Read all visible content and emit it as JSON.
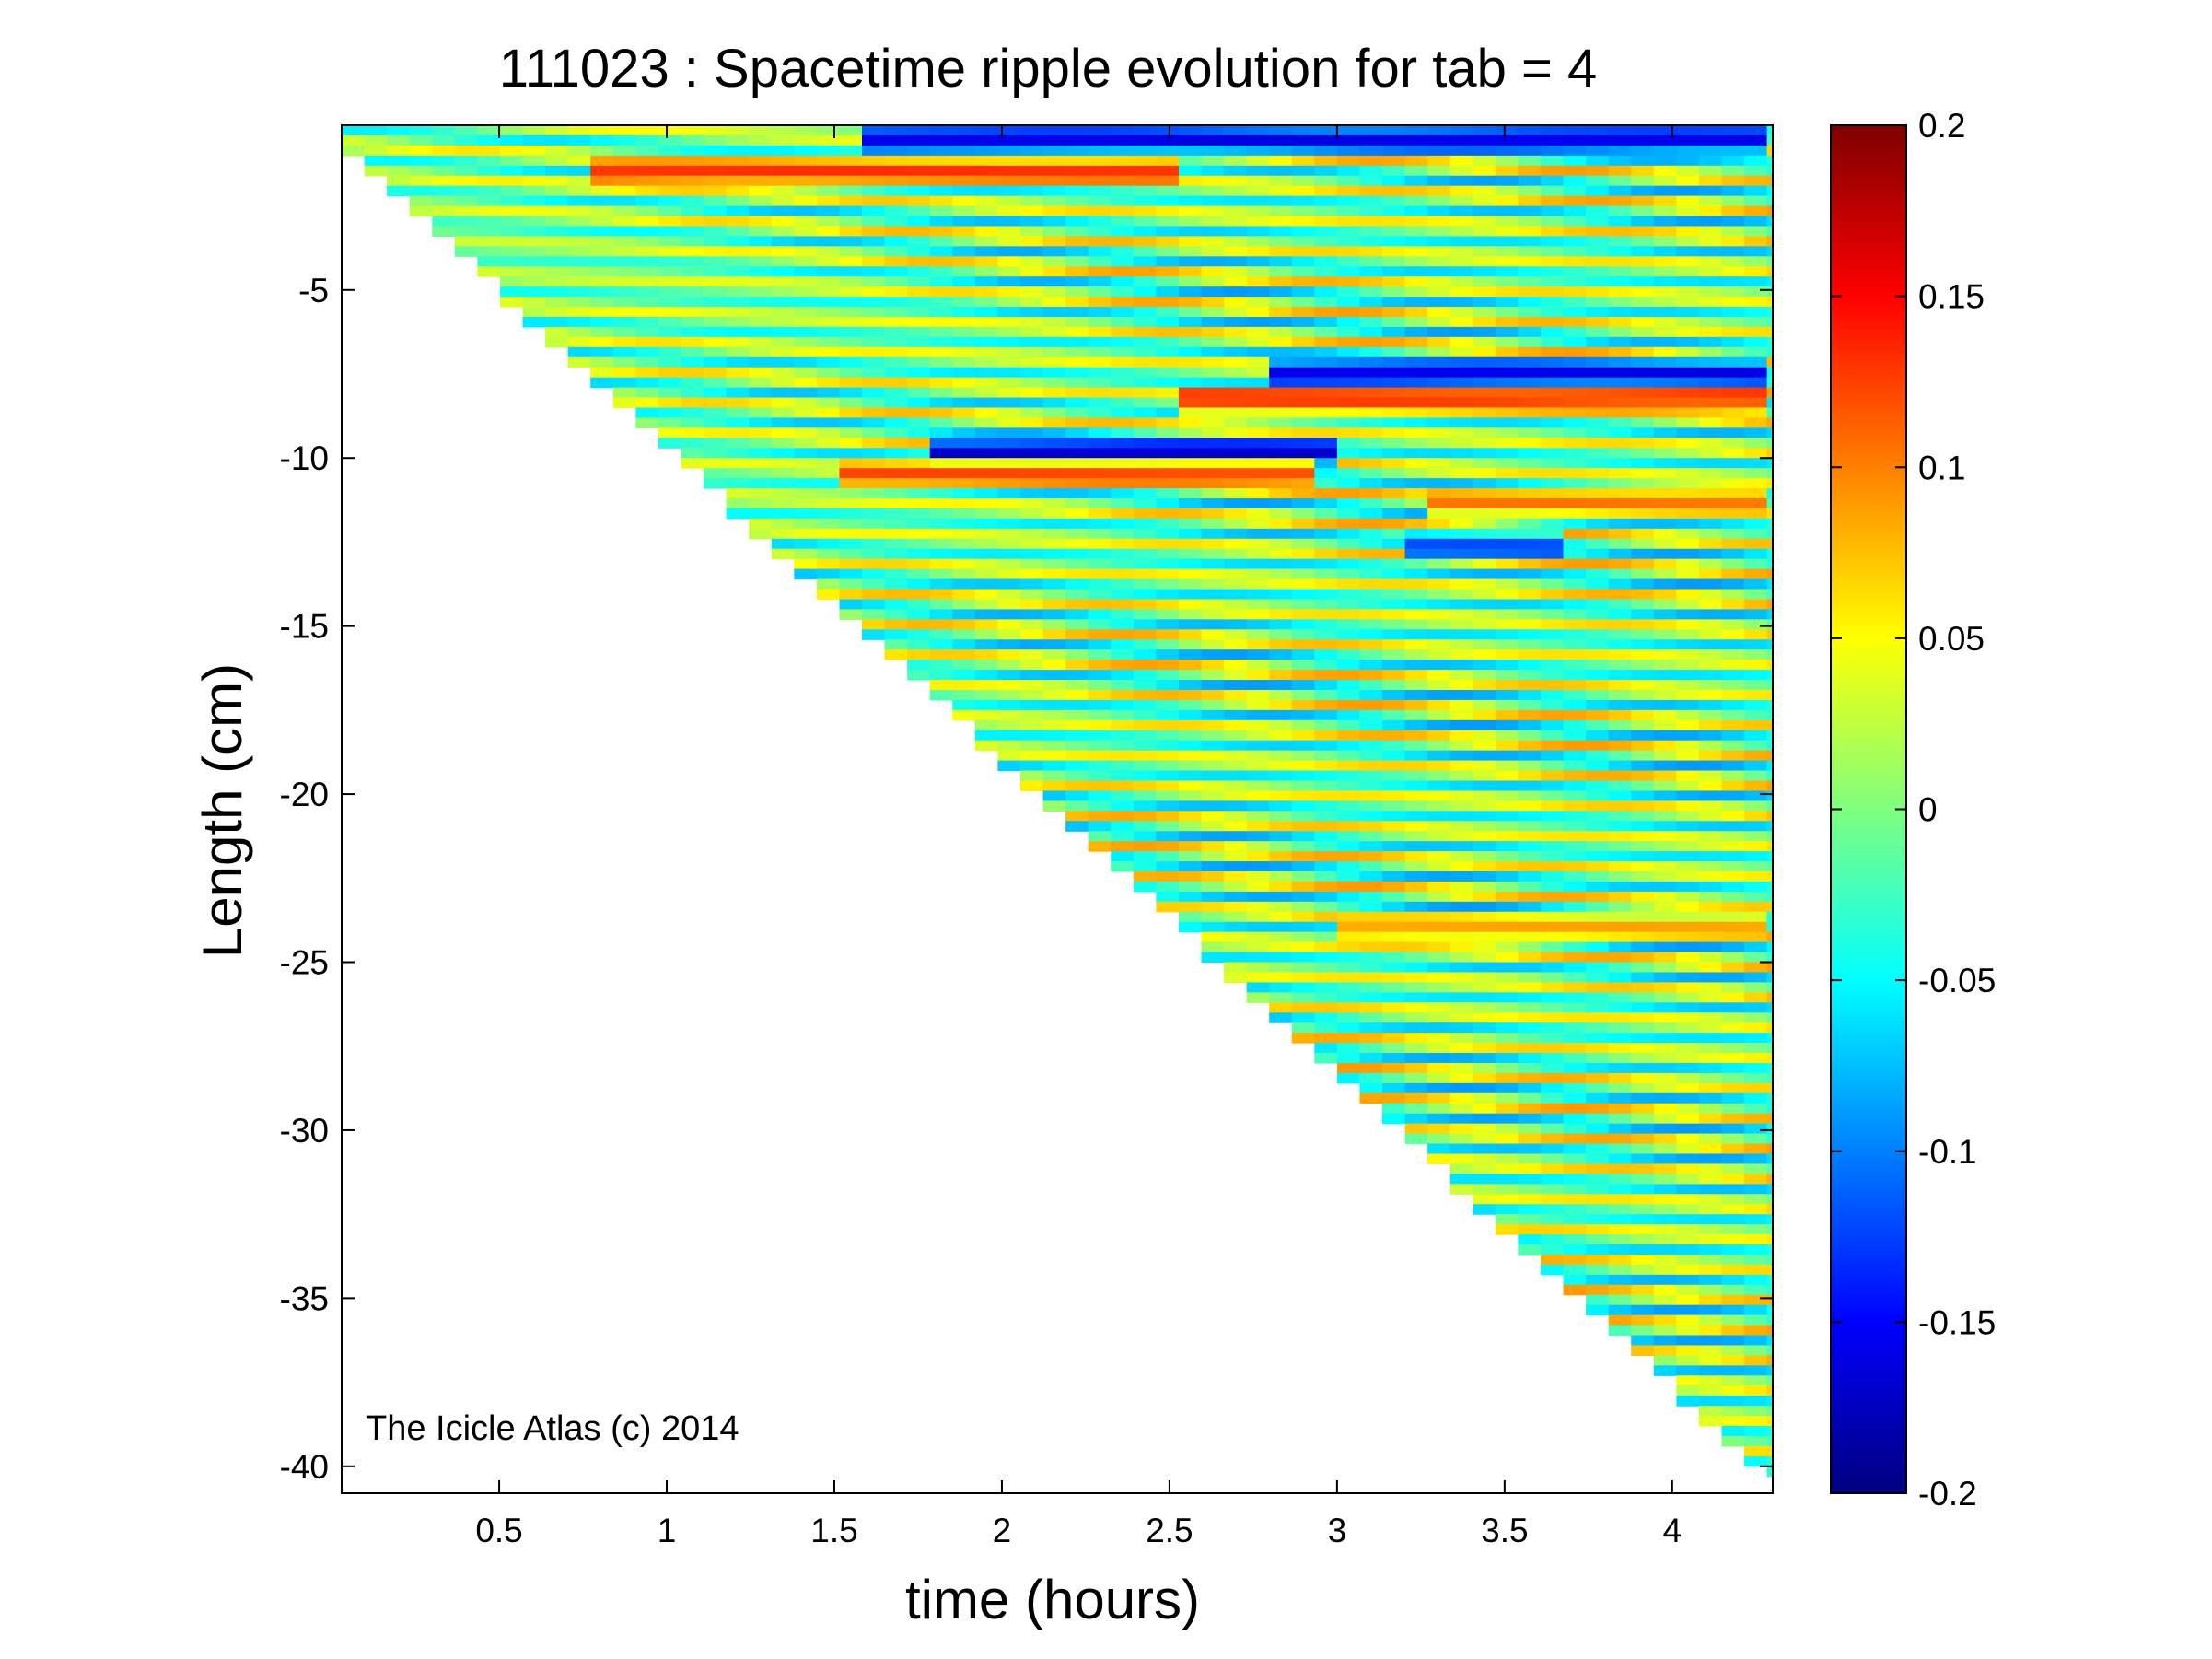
{
  "chart_data": {
    "type": "heatmap",
    "title": "111023 : Spacetime ripple evolution for tab = 4",
    "xlabel": "time (hours)",
    "ylabel": "Length (cm)",
    "xlim": [
      0.03,
      4.3
    ],
    "ylim": [
      -40.8,
      -0.1
    ],
    "x_ticks": [
      0.5,
      1,
      1.5,
      2,
      2.5,
      3,
      3.5,
      4
    ],
    "x_tick_labels": [
      "0.5",
      "1",
      "1.5",
      "2",
      "2.5",
      "3",
      "3.5",
      "4"
    ],
    "y_ticks": [
      -5,
      -10,
      -15,
      -20,
      -25,
      -30,
      -35,
      -40
    ],
    "y_tick_labels": [
      "-5",
      "-10",
      "-15",
      "-20",
      "-25",
      "-30",
      "-35",
      "-40"
    ],
    "colorbar": {
      "colormap": "jet",
      "range": [
        -0.2,
        0.2
      ],
      "ticks": [
        0.2,
        0.15,
        0.1,
        0.05,
        0,
        -0.05,
        -0.1,
        -0.15,
        -0.2
      ],
      "tick_labels": [
        "0.2",
        "0.15",
        "0.1",
        "0.05",
        "0",
        "-0.05",
        "-0.1",
        "-0.15",
        "-0.2"
      ]
    },
    "data_boundary": {
      "description_points_t_h": [
        0.03,
        4.27
      ],
      "lower_edge_length_cm": [
        -0.5,
        -40.0
      ]
    },
    "ripple_bands": {
      "count": 45,
      "spacing_cm": 0.9,
      "drift_cm_per_hour": -0.45,
      "strong_features": [
        {
          "t_start": 1.6,
          "t_end": 4.3,
          "length_cm": -0.5,
          "value": -0.17
        },
        {
          "t_start": 0.8,
          "t_end": 2.5,
          "length_cm": -1.5,
          "value": 0.14
        },
        {
          "t_start": 2.8,
          "t_end": 4.3,
          "length_cm": -7.5,
          "value": -0.17
        },
        {
          "t_start": 2.5,
          "t_end": 4.3,
          "length_cm": -8.2,
          "value": 0.15
        },
        {
          "t_start": 1.8,
          "t_end": 3.0,
          "length_cm": -9.8,
          "value": -0.18
        },
        {
          "t_start": 1.5,
          "t_end": 2.9,
          "length_cm": -10.5,
          "value": 0.13
        },
        {
          "t_start": 3.3,
          "t_end": 4.3,
          "length_cm": -11.3,
          "value": 0.11
        },
        {
          "t_start": 3.2,
          "t_end": 3.7,
          "length_cm": -12.7,
          "value": -0.14
        },
        {
          "t_start": 3.0,
          "t_end": 4.3,
          "length_cm": -24.0,
          "value": 0.09
        }
      ]
    },
    "annotation": "The Icicle Atlas (c) 2014"
  }
}
